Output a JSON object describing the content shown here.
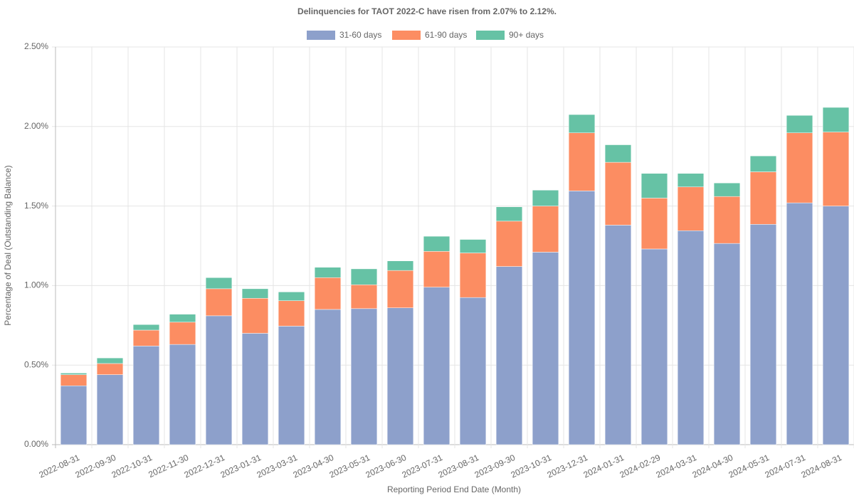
{
  "chart_data": {
    "type": "stacked-bar",
    "title": "Delinquencies for TAOT 2022-C have risen from 2.07% to 2.12%.",
    "x_label": "Reporting Period End Date (Month)",
    "y_label": "Percentage of Deal (Outstanding Balance)",
    "categories": [
      "2022-08-31",
      "2022-09-30",
      "2022-10-31",
      "2022-11-30",
      "2022-12-31",
      "2023-01-31",
      "2023-03-31",
      "2023-04-30",
      "2023-05-31",
      "2023-06-30",
      "2023-07-31",
      "2023-08-31",
      "2023-09-30",
      "2023-10-31",
      "2023-12-31",
      "2024-01-31",
      "2024-02-29",
      "2024-03-31",
      "2024-04-30",
      "2024-05-31",
      "2024-07-31",
      "2024-08-31"
    ],
    "series": [
      {
        "name": "31-60 days",
        "color": "#8da0cb",
        "values": [
          0.37,
          0.44,
          0.62,
          0.63,
          0.81,
          0.7,
          0.745,
          0.85,
          0.855,
          0.86,
          0.99,
          0.925,
          1.12,
          1.21,
          1.595,
          1.38,
          1.23,
          1.345,
          1.265,
          1.385,
          1.52,
          1.5
        ]
      },
      {
        "name": "61-90 days",
        "color": "#fc8d62",
        "values": [
          0.07,
          0.07,
          0.1,
          0.14,
          0.17,
          0.22,
          0.16,
          0.2,
          0.15,
          0.235,
          0.225,
          0.28,
          0.285,
          0.29,
          0.365,
          0.395,
          0.32,
          0.275,
          0.295,
          0.33,
          0.44,
          0.465
        ]
      },
      {
        "name": "90+ days",
        "color": "#66c2a5",
        "values": [
          0.01,
          0.035,
          0.035,
          0.05,
          0.07,
          0.06,
          0.055,
          0.065,
          0.1,
          0.06,
          0.095,
          0.085,
          0.09,
          0.1,
          0.115,
          0.11,
          0.155,
          0.085,
          0.085,
          0.1,
          0.11,
          0.155
        ]
      }
    ],
    "ylim": [
      0,
      2.5
    ],
    "yticks": [
      {
        "value": 0,
        "label": "0.00%"
      },
      {
        "value": 0.5,
        "label": "0.50%"
      },
      {
        "value": 1,
        "label": "1.00%"
      },
      {
        "value": 1.5,
        "label": "1.50%"
      },
      {
        "value": 2,
        "label": "2.00%"
      },
      {
        "value": 2.5,
        "label": "2.50%"
      }
    ],
    "grid": true,
    "legend": "top"
  }
}
